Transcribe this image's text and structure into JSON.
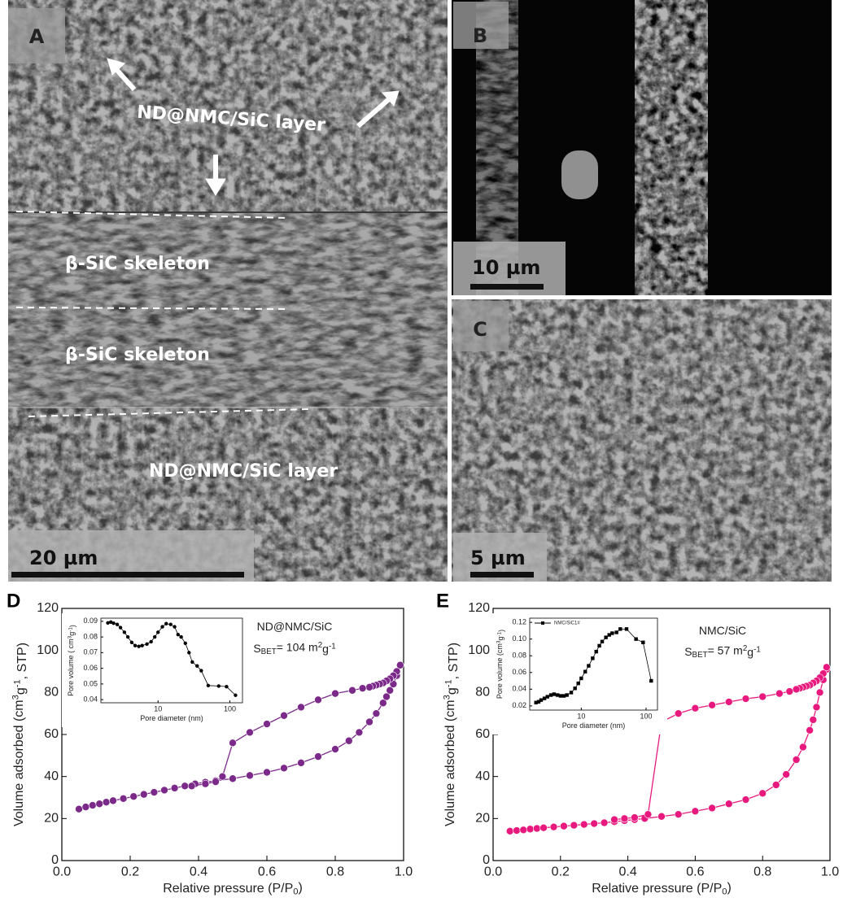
{
  "images": [
    {
      "label": "A",
      "texts": [
        "ND@NMC/SiC layer",
        "β-SiC skeleton",
        "β-SiC skeleton",
        "ND@NMC/SiC layer"
      ],
      "scale_bar": "20 µm"
    },
    {
      "label": "B",
      "scale_bar": "10 µm"
    },
    {
      "label": "C",
      "scale_bar": "5 µm"
    }
  ],
  "chart_data": [
    {
      "type": "line",
      "label": "D",
      "xlabel": [
        {
          "text": "Relative pressure (P/P"
        },
        {
          "text": "0",
          "pos": "sub"
        },
        {
          "text": ")"
        }
      ],
      "ylabel": [
        {
          "text": "Volume adsorbed (cm"
        },
        {
          "text": "3",
          "pos": "sup"
        },
        {
          "text": "g"
        },
        {
          "text": "-1",
          "pos": "sup"
        },
        {
          "text": ", STP)"
        }
      ],
      "annotations": [
        [
          {
            "text": "ND@NMC/SiC"
          }
        ],
        [
          {
            "text": "S"
          },
          {
            "text": "BET",
            "pos": "sub"
          },
          {
            "text": "= 104 m"
          },
          {
            "text": "2",
            "pos": "sup"
          },
          {
            "text": "g"
          },
          {
            "text": "-1",
            "pos": "sup"
          }
        ]
      ],
      "xlim": [
        0,
        1
      ],
      "xticks": [
        {
          "value": 0,
          "label": "0.0"
        },
        0.2,
        0.4,
        0.6,
        0.8,
        {
          "value": 1,
          "label": "1.0"
        }
      ],
      "ylim": [
        0,
        120
      ],
      "yticks": [
        0,
        20,
        40,
        60,
        80,
        100,
        120
      ],
      "series": [
        {
          "color": "#7b2a8a",
          "x": [
            0.05,
            0.07,
            0.09,
            0.11,
            0.13,
            0.15,
            0.18,
            0.21,
            0.24,
            0.27,
            0.3,
            0.33,
            0.36,
            0.39,
            0.42,
            0.45,
            0.5,
            0.55,
            0.6,
            0.65,
            0.7,
            0.75,
            0.8,
            0.84,
            0.87,
            0.9,
            0.92,
            0.94,
            0.95,
            0.96,
            0.97,
            0.98,
            0.99
          ],
          "values": [
            24.5,
            25.5,
            26.3,
            27,
            27.8,
            28.5,
            29.5,
            30.5,
            31.5,
            32.5,
            33.5,
            34.5,
            35.5,
            36.5,
            37.3,
            38,
            39,
            40.5,
            42,
            44,
            46.5,
            49.5,
            53,
            57,
            61,
            66,
            70,
            75,
            78,
            81,
            84,
            88,
            93
          ]
        },
        {
          "color": "#7b2a8a",
          "x": [
            0.99,
            0.98,
            0.97,
            0.96,
            0.95,
            0.94,
            0.93,
            0.92,
            0.91,
            0.9,
            0.88,
            0.85,
            0.8,
            0.75,
            0.7,
            0.65,
            0.6,
            0.55,
            0.5,
            0.47,
            0.45,
            0.42,
            0.38
          ],
          "values": [
            93,
            90,
            88,
            86.5,
            85.5,
            84.5,
            84,
            83.5,
            83,
            82.5,
            82,
            81,
            79.5,
            76.5,
            73,
            69,
            65,
            61,
            56,
            40,
            37.5,
            36.5,
            35.5
          ]
        }
      ]
    },
    {
      "type": "line",
      "xscale": "log",
      "xlabel": [
        {
          "text": "Pore diameter (nm)"
        }
      ],
      "ylabel": [
        {
          "text": "Pore volume ( cm"
        },
        {
          "text": "3",
          "pos": "sup"
        },
        {
          "text": "g"
        },
        {
          "text": "-1",
          "pos": "sup"
        },
        {
          "text": ")"
        }
      ],
      "xlim": [
        1.6,
        150
      ],
      "xticks": [
        10,
        100
      ],
      "ylim": [
        0.038,
        0.092
      ],
      "yticks": [
        0.04,
        0.05,
        0.06,
        0.07,
        0.08,
        0.09
      ],
      "series": [
        {
          "color": "#000000",
          "x": [
            2,
            2.2,
            2.4,
            2.7,
            3,
            3.4,
            3.8,
            4.3,
            4.8,
            5.4,
            6,
            7,
            8,
            9,
            10,
            11.5,
            13,
            15,
            17,
            19,
            21,
            24,
            27,
            30,
            35,
            40,
            50,
            70,
            90,
            120
          ],
          "values": [
            0.089,
            0.0895,
            0.0888,
            0.088,
            0.086,
            0.083,
            0.08,
            0.0765,
            0.0745,
            0.074,
            0.0745,
            0.0755,
            0.077,
            0.08,
            0.083,
            0.0865,
            0.0885,
            0.088,
            0.0865,
            0.0815,
            0.08,
            0.076,
            0.07,
            0.064,
            0.0615,
            0.0585,
            0.049,
            0.0487,
            0.0483,
            0.0428
          ]
        }
      ]
    },
    {
      "type": "line",
      "label": "E",
      "xlabel": [
        {
          "text": "Relative pressure (P/P"
        },
        {
          "text": "0",
          "pos": "sub"
        },
        {
          "text": ")"
        }
      ],
      "ylabel": [
        {
          "text": "Volume adsorbed (cm"
        },
        {
          "text": "3",
          "pos": "sup"
        },
        {
          "text": "g"
        },
        {
          "text": "-1",
          "pos": "sup"
        },
        {
          "text": ", STP)"
        }
      ],
      "annotations": [
        [
          {
            "text": "NMC/SiC"
          }
        ],
        [
          {
            "text": "S"
          },
          {
            "text": "BET",
            "pos": "sub"
          },
          {
            "text": "= 57 m"
          },
          {
            "text": "2",
            "pos": "sup"
          },
          {
            "text": "g"
          },
          {
            "text": "-1",
            "pos": "sup"
          }
        ]
      ],
      "xlim": [
        0,
        1
      ],
      "xticks": [
        {
          "value": 0,
          "label": "0.0"
        },
        0.2,
        0.4,
        0.6,
        0.8,
        {
          "value": 1,
          "label": "1.0"
        }
      ],
      "ylim": [
        0,
        120
      ],
      "yticks": [
        0,
        20,
        40,
        60,
        80,
        100,
        120
      ],
      "series": [
        {
          "color": "#e8197e",
          "x": [
            0.05,
            0.07,
            0.09,
            0.11,
            0.13,
            0.15,
            0.18,
            0.21,
            0.24,
            0.27,
            0.3,
            0.33,
            0.36,
            0.39,
            0.42,
            0.45,
            0.5,
            0.55,
            0.6,
            0.65,
            0.7,
            0.75,
            0.8,
            0.84,
            0.87,
            0.9,
            0.92,
            0.94,
            0.95,
            0.96,
            0.97,
            0.98,
            0.99
          ],
          "values": [
            14,
            14.3,
            14.6,
            15,
            15.3,
            15.6,
            16,
            16.4,
            16.8,
            17.2,
            17.6,
            18,
            18.5,
            19,
            19.5,
            20,
            21,
            22,
            23.5,
            25,
            27,
            29,
            32,
            36,
            41,
            48,
            54,
            62,
            67,
            73,
            80,
            86,
            91
          ]
        },
        {
          "color": "#e8197e",
          "x": [
            0.99,
            0.98,
            0.97,
            0.96,
            0.95,
            0.94,
            0.93,
            0.92,
            0.91,
            0.9,
            0.88,
            0.85,
            0.8,
            0.75,
            0.7,
            0.65,
            0.6,
            0.55,
            0.5,
            0.46,
            0.42,
            0.39,
            0.36
          ],
          "values": [
            92,
            89,
            87,
            85.5,
            84.5,
            83.5,
            83,
            82.5,
            82,
            81.5,
            80.5,
            79.5,
            78,
            77,
            75.5,
            74,
            72.5,
            70,
            66,
            22,
            20.5,
            20,
            19.5
          ]
        }
      ]
    },
    {
      "type": "line",
      "xscale": "log",
      "xlabel": [
        {
          "text": "Pore diameter (nm)"
        }
      ],
      "ylabel": [
        {
          "text": "Pore volume (cm"
        },
        {
          "text": "3",
          "pos": "sup"
        },
        {
          "text": "g"
        },
        {
          "text": "-1",
          "pos": "sup"
        },
        {
          "text": ")"
        }
      ],
      "xlim": [
        1.6,
        150
      ],
      "xticks": [
        10,
        100
      ],
      "ylim": [
        0.015,
        0.125
      ],
      "yticks": [
        0.02,
        0.04,
        0.06,
        0.08,
        {
          "value": 0.1,
          "label": "0.10"
        },
        0.12
      ],
      "legend": "upper left",
      "series": [
        {
          "name": "NMC/SiC1#",
          "color": "#000000",
          "marker": "square",
          "x": [
            2,
            2.2,
            2.4,
            2.7,
            3,
            3.4,
            3.8,
            4.3,
            4.8,
            5.4,
            6,
            7,
            8,
            9,
            10,
            11.5,
            13,
            15,
            17,
            19,
            21,
            24,
            27,
            30,
            35,
            40,
            50,
            70,
            90,
            120
          ],
          "values": [
            0.024,
            0.025,
            0.027,
            0.029,
            0.031,
            0.033,
            0.034,
            0.033,
            0.032,
            0.032,
            0.033,
            0.036,
            0.041,
            0.047,
            0.053,
            0.061,
            0.068,
            0.077,
            0.085,
            0.092,
            0.097,
            0.102,
            0.105,
            0.107,
            0.108,
            0.112,
            0.112,
            0.1,
            0.096,
            0.05
          ]
        }
      ]
    }
  ]
}
